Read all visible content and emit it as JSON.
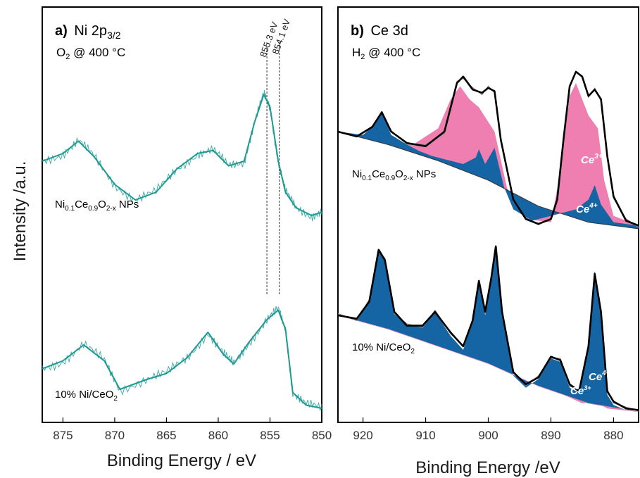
{
  "figure": {
    "ylabel": "Intensity /a.u."
  },
  "colors": {
    "teal": "#1e9a93",
    "ce4": "#1565a5",
    "ce3": "#ee7fb0",
    "envelope": "#000000",
    "raw": "#8a8a8a"
  },
  "chart_data": [
    {
      "type": "line",
      "panel": "a",
      "title_bold": "a)",
      "title_main": "Ni 2p",
      "title_sub": "3/2",
      "condition_main": "O",
      "condition_sub": "2",
      "condition_rest": " @ 400 °C",
      "xlabel": "Binding Energy / eV",
      "xlim": [
        877,
        850
      ],
      "x_reversed": true,
      "ticks": [
        875,
        870,
        865,
        860,
        855,
        850
      ],
      "grid": false,
      "reference_lines": [
        {
          "x": 855.3,
          "label": "855.3 eV"
        },
        {
          "x": 854.1,
          "label": "854.1 eV"
        }
      ],
      "series": [
        {
          "label_parts": [
            "Ni",
            "0.1",
            "Ce",
            "0.9",
            "O",
            "2-x",
            "  NPs"
          ],
          "points": [
            [
              877,
              0.55
            ],
            [
              875,
              0.6
            ],
            [
              873.5,
              0.68
            ],
            [
              872,
              0.58
            ],
            [
              870,
              0.4
            ],
            [
              868,
              0.3
            ],
            [
              866,
              0.35
            ],
            [
              864,
              0.5
            ],
            [
              862,
              0.6
            ],
            [
              860.5,
              0.62
            ],
            [
              859,
              0.52
            ],
            [
              857.5,
              0.55
            ],
            [
              856.5,
              0.8
            ],
            [
              855.6,
              0.98
            ],
            [
              855.0,
              0.9
            ],
            [
              854.2,
              0.55
            ],
            [
              853.5,
              0.35
            ],
            [
              852.5,
              0.25
            ],
            [
              851,
              0.2
            ],
            [
              850,
              0.22
            ]
          ]
        },
        {
          "label_parts": [
            "10% Ni/CeO",
            "2",
            ""
          ],
          "points": [
            [
              877,
              0.25
            ],
            [
              875,
              0.3
            ],
            [
              873,
              0.4
            ],
            [
              871,
              0.3
            ],
            [
              869.5,
              0.12
            ],
            [
              867,
              0.18
            ],
            [
              865,
              0.22
            ],
            [
              863,
              0.32
            ],
            [
              861,
              0.48
            ],
            [
              859.5,
              0.34
            ],
            [
              858.5,
              0.28
            ],
            [
              857,
              0.42
            ],
            [
              855.3,
              0.56
            ],
            [
              854.2,
              0.62
            ],
            [
              853.5,
              0.5
            ],
            [
              852.8,
              0.1
            ],
            [
              851.5,
              0.02
            ],
            [
              850,
              0.0
            ]
          ]
        }
      ]
    },
    {
      "type": "area",
      "panel": "b",
      "title_bold": "b)",
      "title_main": "Ce 3d",
      "condition_main": "H",
      "condition_sub": "2",
      "condition_rest": " @ 400 °C",
      "xlabel": "Binding Energy /eV",
      "xlim": [
        924,
        876
      ],
      "x_reversed": true,
      "ticks": [
        920,
        910,
        900,
        890,
        880
      ],
      "grid": false,
      "series": [
        {
          "label_parts": [
            "Ni",
            "0.1",
            "Ce",
            "0.9",
            "O",
            "2-x",
            "  NPs"
          ],
          "component_labels": {
            "ce3": "Ce",
            "ce3_sup": "3+",
            "ce4": "Ce",
            "ce4_sup": "4+"
          },
          "envelope": [
            [
              924,
              0.6
            ],
            [
              921,
              0.57
            ],
            [
              918.5,
              0.63
            ],
            [
              917,
              0.72
            ],
            [
              915.5,
              0.6
            ],
            [
              913,
              0.53
            ],
            [
              910,
              0.51
            ],
            [
              907,
              0.6
            ],
            [
              905,
              0.9
            ],
            [
              904,
              0.94
            ],
            [
              902.5,
              0.86
            ],
            [
              901,
              0.84
            ],
            [
              900,
              0.87
            ],
            [
              899,
              0.85
            ],
            [
              898,
              0.55
            ],
            [
              896,
              0.18
            ],
            [
              894,
              0.06
            ],
            [
              892,
              0.03
            ],
            [
              890,
              0.06
            ],
            [
              889,
              0.18
            ],
            [
              888,
              0.55
            ],
            [
              887,
              0.88
            ],
            [
              886,
              0.97
            ],
            [
              885,
              0.94
            ],
            [
              884,
              0.82
            ],
            [
              883,
              0.86
            ],
            [
              882,
              0.8
            ],
            [
              881,
              0.45
            ],
            [
              880,
              0.2
            ],
            [
              878,
              0.05
            ],
            [
              876,
              0.02
            ]
          ],
          "ce3_area": [
            [
              924,
              0.6
            ],
            [
              918,
              0.55
            ],
            [
              912,
              0.52
            ],
            [
              908,
              0.62
            ],
            [
              906,
              0.8
            ],
            [
              904.5,
              0.88
            ],
            [
              903,
              0.8
            ],
            [
              901.5,
              0.75
            ],
            [
              899,
              0.6
            ],
            [
              897,
              0.25
            ],
            [
              894,
              0.06
            ],
            [
              890,
              0.04
            ],
            [
              888.5,
              0.35
            ],
            [
              887,
              0.82
            ],
            [
              886,
              0.9
            ],
            [
              885,
              0.8
            ],
            [
              884,
              0.7
            ],
            [
              882.5,
              0.62
            ],
            [
              881.5,
              0.3
            ],
            [
              880,
              0.08
            ],
            [
              876,
              0.02
            ]
          ],
          "ce4_area": [
            [
              924,
              0.6
            ],
            [
              920,
              0.58
            ],
            [
              918.5,
              0.63
            ],
            [
              917,
              0.72
            ],
            [
              915.5,
              0.58
            ],
            [
              913,
              0.52
            ],
            [
              911,
              0.48
            ],
            [
              909,
              0.45
            ],
            [
              906,
              0.42
            ],
            [
              904,
              0.4
            ],
            [
              902,
              0.44
            ],
            [
              901.5,
              0.49
            ],
            [
              900.5,
              0.4
            ],
            [
              899,
              0.5
            ],
            [
              897.5,
              0.26
            ],
            [
              896,
              0.12
            ],
            [
              893,
              0.05
            ],
            [
              890,
              0.08
            ],
            [
              888,
              0.1
            ],
            [
              886,
              0.12
            ],
            [
              884,
              0.18
            ],
            [
              883,
              0.27
            ],
            [
              882,
              0.15
            ],
            [
              880,
              0.04
            ],
            [
              876,
              0.02
            ]
          ],
          "baseline": [
            [
              924,
              0.6
            ],
            [
              916,
              0.52
            ],
            [
              908,
              0.42
            ],
            [
              900,
              0.3
            ],
            [
              892,
              0.14
            ],
            [
              884,
              0.04
            ],
            [
              876,
              0.0
            ]
          ]
        },
        {
          "label_parts": [
            "10% Ni/CeO",
            "2",
            ""
          ],
          "component_labels": {
            "ce3": "Ce",
            "ce3_sup": "3+",
            "ce4": "Ce",
            "ce4_sup": "4+"
          },
          "envelope": [
            [
              924,
              0.58
            ],
            [
              921,
              0.56
            ],
            [
              919,
              0.66
            ],
            [
              917.5,
              0.96
            ],
            [
              916.5,
              0.9
            ],
            [
              915,
              0.6
            ],
            [
              913,
              0.52
            ],
            [
              910.5,
              0.52
            ],
            [
              908.5,
              0.6
            ],
            [
              906,
              0.48
            ],
            [
              904,
              0.4
            ],
            [
              902.5,
              0.55
            ],
            [
              901.5,
              0.78
            ],
            [
              900.5,
              0.6
            ],
            [
              899.5,
              0.8
            ],
            [
              898.8,
              0.98
            ],
            [
              897.8,
              0.6
            ],
            [
              896,
              0.25
            ],
            [
              894,
              0.18
            ],
            [
              892,
              0.22
            ],
            [
              890,
              0.34
            ],
            [
              888.5,
              0.32
            ],
            [
              887,
              0.18
            ],
            [
              885.5,
              0.14
            ],
            [
              884,
              0.4
            ],
            [
              883,
              0.82
            ],
            [
              882,
              0.6
            ],
            [
              881,
              0.14
            ],
            [
              880,
              0.08
            ],
            [
              878,
              0.04
            ],
            [
              876,
              0.03
            ]
          ],
          "ce3_area": [
            [
              924,
              0.58
            ],
            [
              916,
              0.5
            ],
            [
              908,
              0.4
            ],
            [
              900,
              0.3
            ],
            [
              892,
              0.17
            ],
            [
              888,
              0.12
            ],
            [
              885,
              0.07
            ],
            [
              883,
              0.08
            ],
            [
              881,
              0.04
            ],
            [
              876,
              0.02
            ]
          ],
          "ce4_area": [
            [
              924,
              0.58
            ],
            [
              921,
              0.56
            ],
            [
              919,
              0.66
            ],
            [
              917.5,
              0.96
            ],
            [
              916.5,
              0.9
            ],
            [
              915,
              0.6
            ],
            [
              913,
              0.52
            ],
            [
              910.5,
              0.52
            ],
            [
              908.5,
              0.6
            ],
            [
              906,
              0.46
            ],
            [
              904,
              0.38
            ],
            [
              902.5,
              0.54
            ],
            [
              901.5,
              0.77
            ],
            [
              900.5,
              0.58
            ],
            [
              899.5,
              0.79
            ],
            [
              898.8,
              0.97
            ],
            [
              897.8,
              0.58
            ],
            [
              896,
              0.23
            ],
            [
              894,
              0.16
            ],
            [
              892,
              0.21
            ],
            [
              890,
              0.33
            ],
            [
              888.5,
              0.31
            ],
            [
              887,
              0.16
            ],
            [
              885.5,
              0.13
            ],
            [
              884,
              0.39
            ],
            [
              883,
              0.81
            ],
            [
              882,
              0.58
            ],
            [
              881,
              0.12
            ],
            [
              880,
              0.06
            ],
            [
              878,
              0.03
            ],
            [
              876,
              0.02
            ]
          ],
          "baseline": [
            [
              924,
              0.58
            ],
            [
              916,
              0.5
            ],
            [
              908,
              0.4
            ],
            [
              900,
              0.3
            ],
            [
              892,
              0.17
            ],
            [
              884,
              0.07
            ],
            [
              876,
              0.02
            ]
          ]
        }
      ]
    }
  ]
}
